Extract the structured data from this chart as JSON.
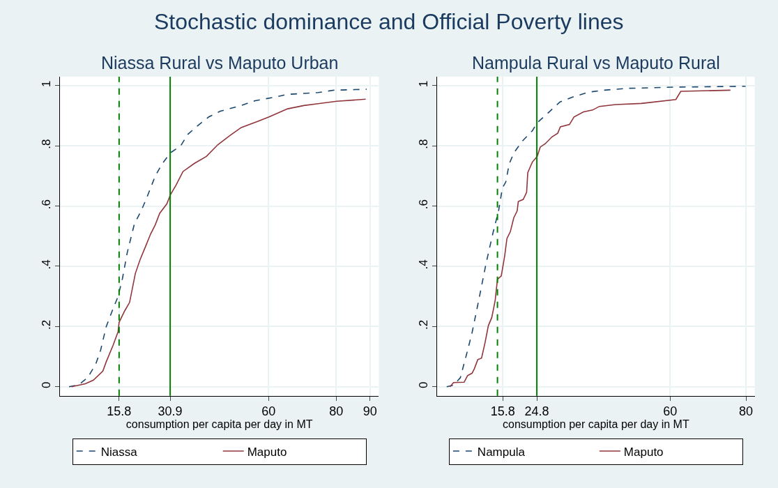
{
  "chart_data": [
    {
      "type": "line",
      "title": "Niassa Rural vs Maputo Urban",
      "annotations": [
        "Stochastic dominance and Official Poverty lines"
      ],
      "xlabel": "consumption per capita per day in MT",
      "xlim": [
        -1.7,
        92.6
      ],
      "ylim": [
        -0.03,
        1.03
      ],
      "xticks": [
        15.8,
        30.9,
        60,
        80,
        90
      ],
      "yticks": [
        0,
        {
          "value": 0.2,
          "label": ".2"
        },
        {
          "value": 0.4,
          "label": ".4"
        },
        {
          "value": 0.6,
          "label": ".6"
        },
        {
          "value": 0.8,
          "label": ".8"
        },
        1
      ],
      "grid": true,
      "legend": "bottom",
      "ref_lines": [
        {
          "axis": "x",
          "value": 15.8,
          "color": "#008000",
          "line_style": "dashed"
        },
        {
          "axis": "x",
          "value": 30.9,
          "color": "#008000",
          "line_style": "solid"
        }
      ],
      "series": [
        {
          "name": "Niassa",
          "color": "#1a476f",
          "line_style": "dashed",
          "x": [
            1.0,
            3.8,
            6.5,
            8.9,
            10.3,
            12.0,
            13.7,
            15.5,
            16.8,
            18.2,
            20.3,
            22.3,
            23.7,
            26.5,
            28.5,
            31.0,
            34.0,
            36.1,
            38.8,
            42.3,
            45.7,
            51.9,
            56.0,
            61.5,
            65.6,
            74.6,
            79.4,
            89.0
          ],
          "values": [
            0,
            0.006,
            0.03,
            0.075,
            0.12,
            0.2,
            0.25,
            0.3,
            0.36,
            0.445,
            0.54,
            0.584,
            0.62,
            0.7,
            0.74,
            0.777,
            0.8,
            0.838,
            0.865,
            0.896,
            0.915,
            0.934,
            0.95,
            0.961,
            0.971,
            0.977,
            0.985,
            0.988
          ]
        },
        {
          "name": "Maputo",
          "color": "#90353b",
          "line_style": "solid",
          "x": [
            1.7,
            5.8,
            8.2,
            11.0,
            12.0,
            14.0,
            15.5,
            15.8,
            17.5,
            18.9,
            20.6,
            22.0,
            23.7,
            25.1,
            26.5,
            27.8,
            29.9,
            31.0,
            32.6,
            34.7,
            38.1,
            41.6,
            45.0,
            48.5,
            51.9,
            56.7,
            60.1,
            65.6,
            70.4,
            74.6,
            80.1,
            88.7
          ],
          "values": [
            0,
            0.01,
            0.022,
            0.052,
            0.083,
            0.137,
            0.183,
            0.214,
            0.253,
            0.28,
            0.376,
            0.422,
            0.468,
            0.507,
            0.538,
            0.576,
            0.607,
            0.638,
            0.669,
            0.715,
            0.742,
            0.765,
            0.804,
            0.834,
            0.861,
            0.881,
            0.896,
            0.923,
            0.934,
            0.94,
            0.948,
            0.955
          ]
        }
      ]
    },
    {
      "type": "line",
      "title": "Nampula Rural vs Maputo Rural",
      "xlabel": "consumption per capita per day in MT",
      "xlim": [
        -1.5,
        82.3
      ],
      "ylim": [
        -0.03,
        1.03
      ],
      "xticks": [
        15.8,
        24.8,
        60,
        80
      ],
      "yticks": [
        0,
        {
          "value": 0.2,
          "label": ".2"
        },
        {
          "value": 0.4,
          "label": ".4"
        },
        {
          "value": 0.6,
          "label": ".6"
        },
        {
          "value": 0.8,
          "label": ".8"
        },
        1
      ],
      "grid": true,
      "legend": "bottom",
      "ref_lines": [
        {
          "axis": "x",
          "value": 14.4,
          "color": "#008000",
          "line_style": "dashed"
        },
        {
          "axis": "x",
          "value": 24.8,
          "color": "#008000",
          "line_style": "solid"
        }
      ],
      "series": [
        {
          "name": "Nampula",
          "color": "#1a476f",
          "line_style": "dashed",
          "x": [
            1.0,
            2.8,
            4.6,
            6.5,
            7.7,
            9.5,
            11.4,
            13.2,
            14.7,
            15.7,
            16.6,
            17.5,
            18.7,
            20.9,
            23.6,
            24.9,
            27.9,
            30.9,
            34.0,
            38.3,
            42.6,
            48.7,
            60.9,
            79.9
          ],
          "values": [
            0,
            0.005,
            0.03,
            0.12,
            0.18,
            0.29,
            0.41,
            0.51,
            0.585,
            0.66,
            0.68,
            0.74,
            0.776,
            0.815,
            0.85,
            0.877,
            0.911,
            0.946,
            0.961,
            0.978,
            0.985,
            0.991,
            0.995,
            0.998
          ]
        },
        {
          "name": "Maputo",
          "color": "#90353b",
          "line_style": "solid",
          "x": [
            1.9,
            2.8,
            5.6,
            6.5,
            7.7,
            8.3,
            9.2,
            10.2,
            11.1,
            12.0,
            12.9,
            13.8,
            14.4,
            15.4,
            16.3,
            16.9,
            17.8,
            18.7,
            19.6,
            19.9,
            21.2,
            22.1,
            22.4,
            23.6,
            24.9,
            25.7,
            27.0,
            28.8,
            30.3,
            31.0,
            33.4,
            34.6,
            37.1,
            39.5,
            41.3,
            45.6,
            52.4,
            61.5,
            62.8,
            75.9
          ],
          "values": [
            0,
            0.014,
            0.015,
            0.037,
            0.045,
            0.06,
            0.09,
            0.095,
            0.145,
            0.203,
            0.23,
            0.287,
            0.357,
            0.368,
            0.434,
            0.492,
            0.515,
            0.561,
            0.584,
            0.615,
            0.622,
            0.646,
            0.711,
            0.746,
            0.765,
            0.796,
            0.807,
            0.83,
            0.842,
            0.863,
            0.871,
            0.896,
            0.913,
            0.919,
            0.931,
            0.937,
            0.941,
            0.954,
            0.981,
            0.985
          ]
        }
      ]
    }
  ]
}
